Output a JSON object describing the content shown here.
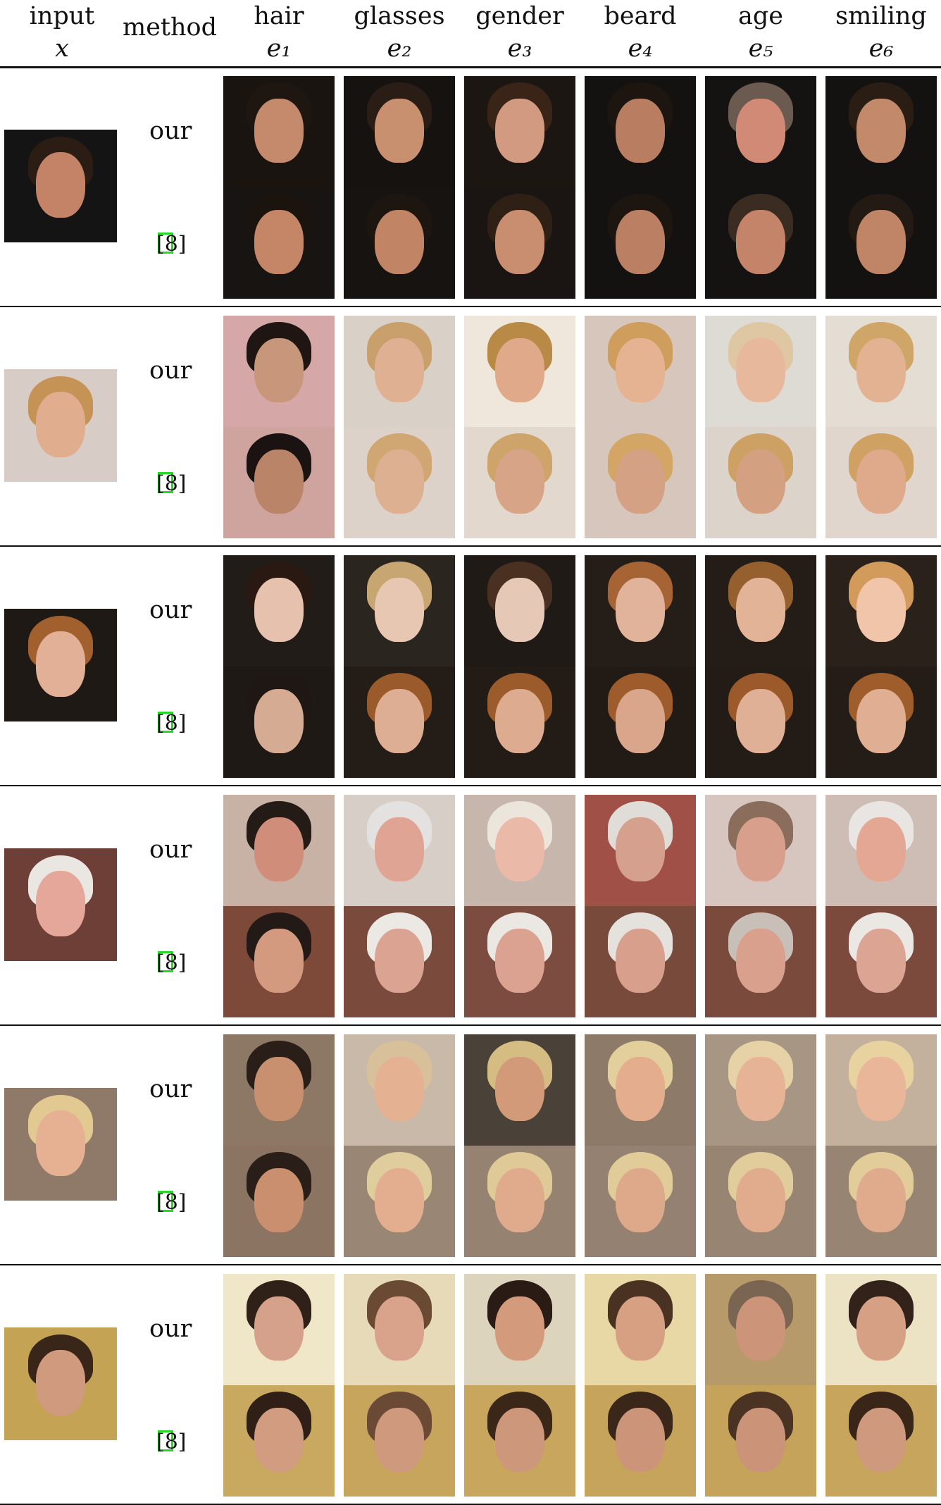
{
  "header": {
    "col_input": {
      "line1": "input",
      "line2": "x"
    },
    "col_method": "method",
    "attributes": [
      {
        "name": "hair",
        "symbol": "e₁"
      },
      {
        "name": "glasses",
        "symbol": "e₂"
      },
      {
        "name": "gender",
        "symbol": "e₃"
      },
      {
        "name": "beard",
        "symbol": "e₄"
      },
      {
        "name": "age",
        "symbol": "e₅"
      },
      {
        "name": "smiling",
        "symbol": "e₆"
      }
    ]
  },
  "methods": {
    "ours": "our",
    "baseline_citation": "[8]"
  },
  "rows": [
    {
      "input": {
        "bg": "#141414",
        "skin": "#c48366",
        "hair": "#2b1d14"
      },
      "ours": [
        {
          "bg": "#1a1410",
          "skin": "#c58a6c",
          "hair": "#1e1611"
        },
        {
          "bg": "#161210",
          "skin": "#c9906f",
          "hair": "#2a1d15"
        },
        {
          "bg": "#1c1612",
          "skin": "#d29a80",
          "hair": "#3a2417"
        },
        {
          "bg": "#141210",
          "skin": "#b97e62",
          "hair": "#1d1510"
        },
        {
          "bg": "#151312",
          "skin": "#d08a76",
          "hair": "#6a5a50"
        },
        {
          "bg": "#131211",
          "skin": "#c3896b",
          "hair": "#2a1d14"
        }
      ],
      "baseline": [
        {
          "bg": "#181412",
          "skin": "#c48667",
          "hair": "#1b130e"
        },
        {
          "bg": "#161311",
          "skin": "#c18566",
          "hair": "#1c1510"
        },
        {
          "bg": "#1a1512",
          "skin": "#c98d70",
          "hair": "#2f2016"
        },
        {
          "bg": "#141210",
          "skin": "#bb8064",
          "hair": "#1d1610"
        },
        {
          "bg": "#151312",
          "skin": "#c48469",
          "hair": "#3b2c22"
        },
        {
          "bg": "#131211",
          "skin": "#c08467",
          "hair": "#231a13"
        }
      ]
    },
    {
      "input": {
        "bg": "#d8cdc6",
        "skin": "#e0ad8f",
        "hair": "#c69356"
      },
      "ours": [
        {
          "bg": "#d6a7a7",
          "skin": "#c8977b",
          "hair": "#1f1512"
        },
        {
          "bg": "#d9d0c7",
          "skin": "#e0b092",
          "hair": "#c9a06c"
        },
        {
          "bg": "#efe7dc",
          "skin": "#dfa98a",
          "hair": "#b98a46"
        },
        {
          "bg": "#d7c6bb",
          "skin": "#e5b392",
          "hair": "#cf9d5c"
        },
        {
          "bg": "#dedad4",
          "skin": "#e8b89d",
          "hair": "#e0c7a3"
        },
        {
          "bg": "#e4ddd4",
          "skin": "#e2b292",
          "hair": "#d0a668"
        }
      ],
      "baseline": [
        {
          "bg": "#cfa49e",
          "skin": "#b98467",
          "hair": "#1b1311"
        },
        {
          "bg": "#dcd2c9",
          "skin": "#deb092",
          "hair": "#d0a673"
        },
        {
          "bg": "#e3d8ce",
          "skin": "#d8a487",
          "hair": "#cfa46a"
        },
        {
          "bg": "#d6c6bc",
          "skin": "#d4a184",
          "hair": "#d3a665"
        },
        {
          "bg": "#dcd3cb",
          "skin": "#d3a082",
          "hair": "#cda064"
        },
        {
          "bg": "#e0d6cd",
          "skin": "#deaa8b",
          "hair": "#cfa263"
        }
      ]
    },
    {
      "input": {
        "bg": "#1e1915",
        "skin": "#e2b097",
        "hair": "#a2602e"
      },
      "ours": [
        {
          "bg": "#221c18",
          "skin": "#e6c1ad",
          "hair": "#2a1812"
        },
        {
          "bg": "#2b2520",
          "skin": "#e8c7b2",
          "hair": "#c8a671"
        },
        {
          "bg": "#201a16",
          "skin": "#e6c8b6",
          "hair": "#4a3021"
        },
        {
          "bg": "#241d18",
          "skin": "#e0b39a",
          "hair": "#a66434"
        },
        {
          "bg": "#241c16",
          "skin": "#e3b397",
          "hair": "#96602e"
        },
        {
          "bg": "#2a211b",
          "skin": "#f0c5aa",
          "hair": "#d39b5b"
        }
      ],
      "baseline": [
        {
          "bg": "#1f1915",
          "skin": "#d6ab93",
          "hair": "#1f1713"
        },
        {
          "bg": "#231c17",
          "skin": "#deae94",
          "hair": "#9a5a2a"
        },
        {
          "bg": "#221b16",
          "skin": "#dcab90",
          "hair": "#9b5b2b"
        },
        {
          "bg": "#211a15",
          "skin": "#d9a68c",
          "hair": "#9e5c2c"
        },
        {
          "bg": "#221b16",
          "skin": "#dfb096",
          "hair": "#9c5a2b"
        },
        {
          "bg": "#231c17",
          "skin": "#e0ae93",
          "hair": "#9f5d2c"
        }
      ]
    },
    {
      "input": {
        "bg": "#6e3f36",
        "skin": "#e5a79a",
        "hair": "#eae6e2"
      },
      "ours": [
        {
          "bg": "#c8b2a6",
          "skin": "#d08d7a",
          "hair": "#241a16"
        },
        {
          "bg": "#d8cec8",
          "skin": "#e0a494",
          "hair": "#e4e2e0"
        },
        {
          "bg": "#c6b6ac",
          "skin": "#eab9a8",
          "hair": "#ece5dc"
        },
        {
          "bg": "#a05046",
          "skin": "#d6a08e",
          "hair": "#e0dcd8"
        },
        {
          "bg": "#d7c5c0",
          "skin": "#d8a08c",
          "hair": "#8a6d5a"
        },
        {
          "bg": "#cdbdb4",
          "skin": "#e3a793",
          "hair": "#e8e5e2"
        }
      ],
      "baseline": [
        {
          "bg": "#7d4a3a",
          "skin": "#d39a80",
          "hair": "#231916"
        },
        {
          "bg": "#7a4a3c",
          "skin": "#dba391",
          "hair": "#ece8e4"
        },
        {
          "bg": "#7b4c3f",
          "skin": "#dba291",
          "hair": "#ebe7e2"
        },
        {
          "bg": "#784a3c",
          "skin": "#d79f8c",
          "hair": "#e5e1dd"
        },
        {
          "bg": "#7a4b3d",
          "skin": "#d8a08d",
          "hair": "#c8c0b8"
        },
        {
          "bg": "#7b4a3c",
          "skin": "#dca493",
          "hair": "#ebe7e3"
        }
      ]
    },
    {
      "input": {
        "bg": "#8f7a69",
        "skin": "#e6b092",
        "hair": "#e2c992"
      },
      "ours": [
        {
          "bg": "#8c7864",
          "skin": "#c8906e",
          "hair": "#2a1e18"
        },
        {
          "bg": "#c9b9a9",
          "skin": "#e4b193",
          "hair": "#d8c19a"
        },
        {
          "bg": "#4a4238",
          "skin": "#d29a78",
          "hair": "#d4bc82"
        },
        {
          "bg": "#8d7a68",
          "skin": "#e4ad8d",
          "hair": "#e2cf9c"
        },
        {
          "bg": "#a89684",
          "skin": "#e7b396",
          "hair": "#e6d2a6"
        },
        {
          "bg": "#c4b19d",
          "skin": "#e9b699",
          "hair": "#e8d3a0"
        }
      ],
      "baseline": [
        {
          "bg": "#8b7562",
          "skin": "#c98f6e",
          "hair": "#2a1f18"
        },
        {
          "bg": "#9a8674",
          "skin": "#e3ae90",
          "hair": "#e0cd9e"
        },
        {
          "bg": "#958271",
          "skin": "#e0aa8c",
          "hair": "#dfc997"
        },
        {
          "bg": "#948171",
          "skin": "#dea88a",
          "hair": "#e0cb99"
        },
        {
          "bg": "#978472",
          "skin": "#e1ab8e",
          "hair": "#e1cc9b"
        },
        {
          "bg": "#978473",
          "skin": "#e0ab8d",
          "hair": "#e1cc9a"
        }
      ]
    },
    {
      "input": {
        "bg": "#c4a355",
        "skin": "#d09a7e",
        "hair": "#3a2618"
      },
      "ours": [
        {
          "bg": "#f0e6c8",
          "skin": "#d6a18a",
          "hair": "#2f2018"
        },
        {
          "bg": "#e6dab8",
          "skin": "#d8a38a",
          "hair": "#6a4a32"
        },
        {
          "bg": "#dcd4bc",
          "skin": "#d49a7c",
          "hair": "#2a1c14"
        },
        {
          "bg": "#e8d8a6",
          "skin": "#d8a083",
          "hair": "#4a3222"
        },
        {
          "bg": "#b69a6a",
          "skin": "#cc9478",
          "hair": "#7a6452"
        },
        {
          "bg": "#ece2c4",
          "skin": "#d6a085",
          "hair": "#33221a"
        }
      ],
      "baseline": [
        {
          "bg": "#c9a860",
          "skin": "#d29c80",
          "hair": "#2f1f16"
        },
        {
          "bg": "#c7a55c",
          "skin": "#cf997d",
          "hair": "#6a4a34"
        },
        {
          "bg": "#c8a65d",
          "skin": "#cd977b",
          "hair": "#3b2718"
        },
        {
          "bg": "#c6a45b",
          "skin": "#cc957a",
          "hair": "#3a2719"
        },
        {
          "bg": "#c5a35a",
          "skin": "#cb9479",
          "hair": "#4a3322"
        },
        {
          "bg": "#c7a55c",
          "skin": "#cf997d",
          "hair": "#3a2618"
        }
      ]
    }
  ]
}
